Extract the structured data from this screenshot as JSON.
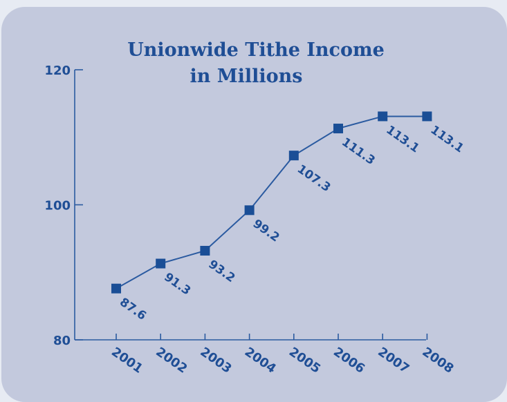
{
  "chart_data": {
    "type": "line",
    "title_line1": "Unionwide Tithe Income",
    "title_line2": "in Millions",
    "xlabel": "",
    "ylabel": "",
    "categories": [
      "2001",
      "2002",
      "2003",
      "2004",
      "2005",
      "2006",
      "2007",
      "2008"
    ],
    "series": [
      {
        "values": [
          87.6,
          91.3,
          93.2,
          99.2,
          107.3,
          111.3,
          113.1,
          113.1
        ]
      }
    ],
    "data_labels": [
      "87.6",
      "91.3",
      "93.2",
      "99.2",
      "107.3",
      "111.3",
      "113.1",
      "113.1"
    ],
    "yticks": [
      "80",
      "100",
      "120"
    ],
    "ylim": [
      80,
      120
    ],
    "grid": false,
    "legend": "none",
    "colors": {
      "series": "#1a4e96",
      "text": "#1f4e95",
      "panel": "#c3c9dd",
      "background": "#e7ebf3"
    }
  }
}
